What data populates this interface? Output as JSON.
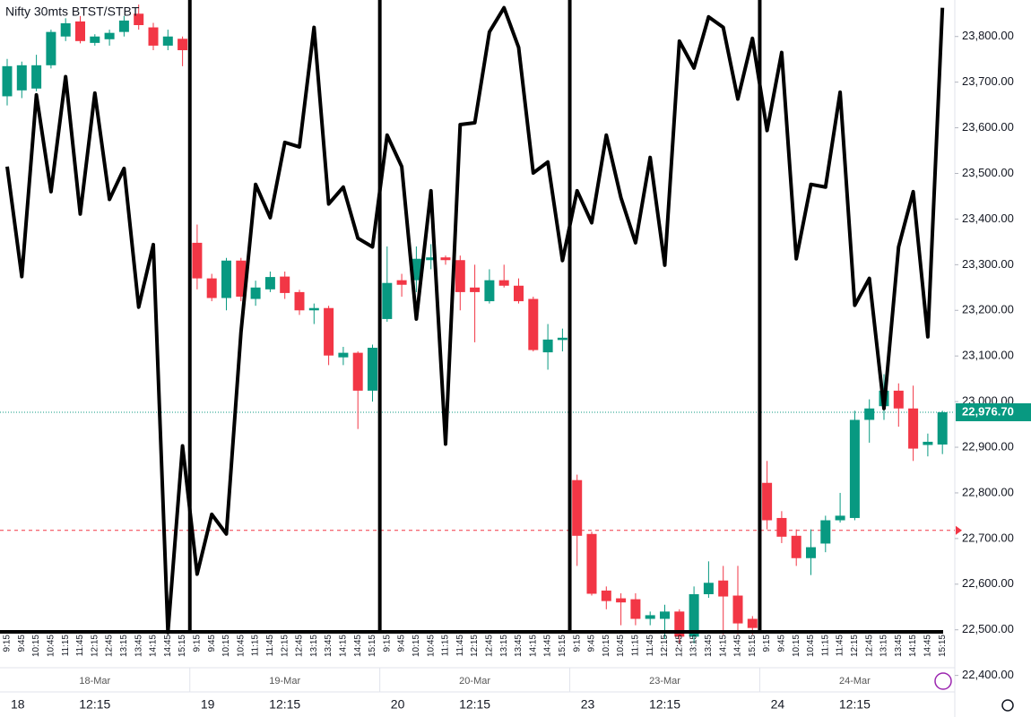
{
  "chart_data": {
    "type": "candlestick",
    "title": "Nifty 30mts BTST/STBT",
    "categories": [
      "9:15",
      "9:45",
      "10:15",
      "10:45",
      "11:15",
      "11:45",
      "12:15",
      "12:45",
      "13:15",
      "13:45",
      "14:15",
      "14:45",
      "15:15",
      "9:15",
      "9:45",
      "10:15",
      "10:45",
      "11:15",
      "11:45",
      "12:15",
      "12:45",
      "13:15",
      "13:45",
      "14:15",
      "14:45",
      "15:15",
      "9:15",
      "9:45",
      "10:15",
      "10:45",
      "11:15",
      "11:45",
      "12:15",
      "12:45",
      "13:15",
      "13:45",
      "14:15",
      "14:45",
      "15:15",
      "9:15",
      "9:45",
      "10:15",
      "10:45",
      "11:15",
      "11:45",
      "12:15",
      "12:45",
      "13:15",
      "13:45",
      "14:15",
      "14:45",
      "15:15",
      "9:15",
      "9:45",
      "10:15",
      "10:45",
      "11:15",
      "11:45",
      "12:15",
      "12:45",
      "13:15",
      "13:45",
      "14:15",
      "14:45",
      "15:15"
    ],
    "day_labels": [
      "18-Mar",
      "19-Mar",
      "20-Mar",
      "23-Mar",
      "24-Mar"
    ],
    "bottom_labels": [
      "18",
      "12:15",
      "19",
      "12:15",
      "20",
      "12:15",
      "23",
      "12:15",
      "24",
      "12:15"
    ],
    "open": [
      23669,
      23682,
      23686,
      23737,
      23800,
      23833,
      23786,
      23794,
      23810,
      23850,
      23820,
      23780,
      23795,
      23348,
      23270,
      23227,
      23309,
      23225,
      23246,
      23274,
      23240,
      23200,
      23205,
      23097,
      23107,
      23024,
      23181,
      23266,
      23266,
      23310,
      23316,
      23310,
      23250,
      23220,
      23266,
      23254,
      23225,
      23108,
      23135,
      22828,
      22710,
      22586,
      22569,
      22567,
      22524,
      22524,
      22540,
      22485,
      22578,
      22608,
      22575,
      22524,
      22822,
      22745,
      22706,
      22657,
      22689,
      22740,
      22745,
      22960,
      22990,
      23024,
      22985,
      22905,
      22906
    ],
    "high": [
      23751,
      23745,
      23760,
      23815,
      23840,
      23845,
      23805,
      23815,
      23845,
      23870,
      23830,
      23815,
      23800,
      23388,
      23280,
      23315,
      23315,
      23265,
      23285,
      23285,
      23245,
      23215,
      23210,
      23120,
      23110,
      23125,
      23340,
      23280,
      23340,
      23345,
      23320,
      23320,
      23300,
      23290,
      23300,
      23270,
      23230,
      23170,
      23160,
      22840,
      22715,
      22595,
      22580,
      22580,
      22540,
      22555,
      22545,
      22595,
      22650,
      22640,
      22640,
      22530,
      22870,
      22760,
      22720,
      22720,
      22750,
      22800,
      22980,
      23005,
      23060,
      23040,
      23035,
      22930,
      22980
    ],
    "low": [
      23649,
      23665,
      23680,
      23730,
      23790,
      23785,
      23780,
      23780,
      23800,
      23815,
      23770,
      23770,
      23735,
      23246,
      23220,
      23200,
      23220,
      23210,
      23240,
      23225,
      23190,
      23170,
      23080,
      23080,
      22940,
      23000,
      23175,
      23230,
      23240,
      23290,
      23300,
      23200,
      23130,
      23215,
      23250,
      23215,
      23110,
      23070,
      23110,
      22640,
      22575,
      22545,
      22510,
      22510,
      22510,
      22480,
      22470,
      22470,
      22570,
      22490,
      22490,
      22490,
      22720,
      22690,
      22640,
      22620,
      22670,
      22735,
      22740,
      22910,
      22960,
      22945,
      22870,
      22880,
      22885
    ],
    "close": [
      23735,
      23737,
      23737,
      23810,
      23829,
      23790,
      23800,
      23808,
      23835,
      23825,
      23780,
      23800,
      23770,
      23270,
      23227,
      23309,
      23230,
      23250,
      23273,
      23238,
      23200,
      23205,
      23101,
      23107,
      23024,
      23118,
      23260,
      23256,
      23313,
      23316,
      23310,
      23240,
      23240,
      23266,
      23254,
      23220,
      23113,
      23136,
      23140,
      22706,
      22579,
      22563,
      22560,
      22524,
      22532,
      22540,
      22485,
      22578,
      22603,
      22573,
      22514,
      22504,
      22740,
      22704,
      22657,
      22681,
      22740,
      22750,
      22960,
      22985,
      23024,
      22985,
      22897,
      22912,
      22976.7
    ],
    "up_color": "#089981",
    "down_color": "#f23645",
    "overlay": {
      "color": "#000000",
      "values": [
        23515,
        23274,
        23672,
        23460,
        23712,
        23411,
        23676,
        23443,
        23511,
        23207,
        23344,
        22494,
        22903,
        22622,
        22753,
        22710,
        23152,
        23476,
        23403,
        23568,
        23558,
        23820,
        23433,
        23470,
        23358,
        23339,
        23584,
        23515,
        23181,
        23462,
        22907,
        23607,
        23611,
        23810,
        23863,
        23776,
        23501,
        23525,
        23309,
        23462,
        23392,
        23584,
        23447,
        23348,
        23535,
        23299,
        23790,
        23731,
        23843,
        23820,
        23663,
        23796,
        23594,
        23765,
        23313,
        23476,
        23470,
        23678,
        23211,
        23270,
        22985,
        23339,
        23460,
        23142,
        23863
      ]
    },
    "last_price": {
      "value": 22976.7,
      "label": "22,976.70"
    },
    "reference_line": 22718,
    "ylim": [
      22360,
      23880
    ],
    "yticks": [
      {
        "value": 22400,
        "label": "22,400.00"
      },
      {
        "value": 22500,
        "label": "22,500.00"
      },
      {
        "value": 22600,
        "label": "22,600.00"
      },
      {
        "value": 22700,
        "label": "22,700.00"
      },
      {
        "value": 22800,
        "label": "22,800.00"
      },
      {
        "value": 22900,
        "label": "22,900.00"
      },
      {
        "value": 23000,
        "label": "23,000.00"
      },
      {
        "value": 23100,
        "label": "23,100.00"
      },
      {
        "value": 23200,
        "label": "23,200.00"
      },
      {
        "value": 23300,
        "label": "23,300.00"
      },
      {
        "value": 23400,
        "label": "23,400.00"
      },
      {
        "value": 23500,
        "label": "23,500.00"
      },
      {
        "value": 23600,
        "label": "23,600.00"
      },
      {
        "value": 23700,
        "label": "23,700.00"
      },
      {
        "value": 23800,
        "label": "23,800.00"
      }
    ],
    "grid": false
  }
}
